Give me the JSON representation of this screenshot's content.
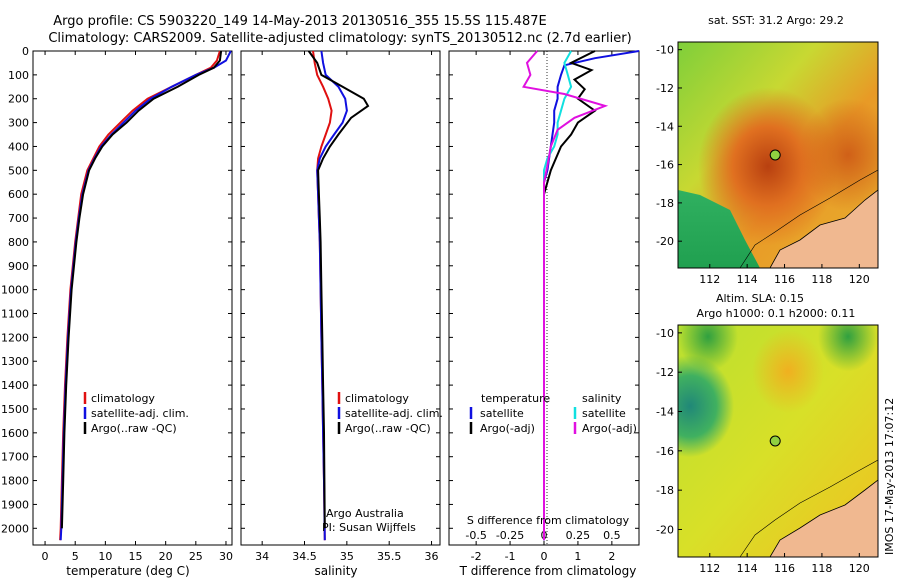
{
  "title_line1": "Argo profile: CS 5903220_149 14-May-2013 20130516_355 15.5S 115.487E",
  "title_line2": "Climatology: CARS2009. Satellite-adjusted climatology: synTS_20130512.nc (2.7d earlier)",
  "side_stamp": "IMOS 17-May-2013 17:07:12",
  "colors": {
    "climatology": "#e01010",
    "satellite_adj": "#1010e0",
    "argo": "#000000",
    "satellite_salinity": "#10e0e0",
    "argo_salinity": "#e010e0"
  },
  "chart_data": [
    {
      "type": "line",
      "id": "temperature",
      "xlabel": "temperature (deg C)",
      "ylabel": "",
      "xlim": [
        -2,
        31
      ],
      "ylim": [
        2070,
        0
      ],
      "xticks": [
        "0",
        "5",
        "10",
        "15",
        "20",
        "25",
        "30"
      ],
      "xtick_values": [
        0,
        5,
        10,
        15,
        20,
        25,
        30
      ],
      "yticks": [
        "0",
        "100",
        "200",
        "300",
        "400",
        "500",
        "600",
        "700",
        "800",
        "900",
        "1000",
        "1100",
        "1200",
        "1300",
        "1400",
        "1500",
        "1600",
        "1700",
        "1800",
        "1900",
        "2000"
      ],
      "ytick_values": [
        0,
        100,
        200,
        300,
        400,
        500,
        600,
        700,
        800,
        900,
        1000,
        1100,
        1200,
        1300,
        1400,
        1500,
        1600,
        1700,
        1800,
        1900,
        2000
      ],
      "legend": [
        "climatology",
        "satellite-adj. clim.",
        "Argo(..raw -QC)"
      ],
      "series": [
        {
          "name": "climatology",
          "color_key": "climatology",
          "x": [
            29,
            28.5,
            27.5,
            25,
            21,
            17,
            14.5,
            12.5,
            10.5,
            9,
            8,
            7,
            6,
            5.5,
            5,
            4.2,
            3.7,
            3.3,
            3,
            2.8,
            2.6,
            2.5
          ],
          "y": [
            0,
            40,
            70,
            100,
            150,
            200,
            250,
            300,
            350,
            400,
            450,
            500,
            600,
            700,
            800,
            1000,
            1200,
            1400,
            1600,
            1800,
            2000,
            2050
          ]
        },
        {
          "name": "satellite-adj. clim.",
          "color_key": "satellite_adj",
          "x": [
            30.8,
            30,
            28,
            25,
            21,
            17.5,
            15,
            13,
            11,
            9.3,
            8.2,
            7.2,
            6.2,
            5.6,
            5.1,
            4.3,
            3.8,
            3.4,
            3.1,
            2.9,
            2.7,
            2.6
          ],
          "y": [
            0,
            40,
            70,
            100,
            150,
            200,
            250,
            300,
            350,
            400,
            450,
            500,
            600,
            700,
            800,
            1000,
            1200,
            1400,
            1600,
            1800,
            2000,
            2050
          ]
        },
        {
          "name": "Argo(..raw -QC)",
          "color_key": "argo",
          "x": [
            29.2,
            29,
            28,
            25.5,
            22,
            18,
            15.5,
            13.5,
            11.2,
            9.5,
            8.3,
            7.3,
            6.3,
            5.7,
            5.2,
            4.4,
            3.9,
            3.5,
            3.2,
            3.0,
            2.8
          ],
          "y": [
            0,
            40,
            70,
            100,
            150,
            200,
            250,
            300,
            350,
            400,
            450,
            500,
            600,
            700,
            800,
            1000,
            1200,
            1400,
            1600,
            1800,
            2000
          ]
        }
      ]
    },
    {
      "type": "line",
      "id": "salinity",
      "xlabel": "salinity",
      "xlim": [
        33.75,
        36.1
      ],
      "ylim": [
        2070,
        0
      ],
      "xticks": [
        "34",
        "34.5",
        "35",
        "35.5",
        "36"
      ],
      "xtick_values": [
        34,
        34.5,
        35,
        35.5,
        36
      ],
      "legend": [
        "climatology",
        "satellite-adj. clim.",
        "Argo(..raw -QC)"
      ],
      "annotation_line1": "Argo Australia",
      "annotation_line2": "PI: Susan Wijffels",
      "series": [
        {
          "name": "climatology",
          "color_key": "climatology",
          "x": [
            34.6,
            34.62,
            34.65,
            34.72,
            34.78,
            34.82,
            34.8,
            34.75,
            34.7,
            34.66,
            34.65,
            34.66,
            34.67,
            34.68,
            34.69,
            34.7,
            34.71,
            34.72,
            34.73,
            34.74
          ],
          "y": [
            0,
            50,
            100,
            150,
            200,
            250,
            300,
            350,
            400,
            450,
            500,
            600,
            700,
            800,
            1000,
            1200,
            1400,
            1600,
            1800,
            2050
          ]
        },
        {
          "name": "satellite-adj. clim.",
          "color_key": "satellite_adj",
          "x": [
            34.7,
            34.72,
            34.75,
            34.9,
            34.98,
            35.0,
            34.95,
            34.85,
            34.75,
            34.68,
            34.65,
            34.66,
            34.67,
            34.68,
            34.69,
            34.7,
            34.71,
            34.72,
            34.73,
            34.74
          ],
          "y": [
            0,
            50,
            100,
            150,
            200,
            250,
            300,
            350,
            400,
            450,
            500,
            600,
            700,
            800,
            1000,
            1200,
            1400,
            1600,
            1800,
            2050
          ]
        },
        {
          "name": "Argo(..raw -QC)",
          "color_key": "argo",
          "x": [
            34.55,
            34.65,
            34.7,
            34.95,
            35.2,
            35.25,
            35.05,
            34.9,
            34.8,
            34.72,
            34.66,
            34.67,
            34.68,
            34.69,
            34.7,
            34.71,
            34.72,
            34.73,
            34.74
          ],
          "y": [
            0,
            50,
            100,
            150,
            200,
            230,
            280,
            350,
            400,
            450,
            500,
            600,
            700,
            800,
            1000,
            1200,
            1400,
            1600,
            2000
          ]
        }
      ]
    },
    {
      "type": "line",
      "id": "difference",
      "xlabel": "T difference from climatology",
      "xlabel_top": "S difference from climatology",
      "xlim": [
        -2.8,
        2.8
      ],
      "ylim": [
        2070,
        0
      ],
      "xticks": [
        "-2",
        "-1",
        "0",
        "1",
        "2"
      ],
      "xtick_values": [
        -2,
        -1,
        0,
        1,
        2
      ],
      "sticks": [
        "-0.5",
        "-0.25",
        "0",
        "0.25",
        "0.5"
      ],
      "stick_values": [
        -2,
        -1,
        0,
        1,
        2
      ],
      "legend_temperature_header": "temperature",
      "legend_salinity_header": "salinity",
      "legend": [
        "satellite",
        "Argo(-adj)",
        "satellite",
        "Argo(-adj)"
      ],
      "series": [
        {
          "name": "satellite",
          "color_key": "satellite_adj",
          "x": [
            2.8,
            1.5,
            0.6,
            0.5,
            0.4,
            0.4,
            0.3,
            0.3,
            0.2,
            0.1,
            0,
            0,
            0,
            0,
            0,
            0,
            0
          ],
          "y": [
            0,
            30,
            60,
            100,
            150,
            200,
            250,
            300,
            400,
            500,
            550,
            600,
            800,
            1000,
            1400,
            1800,
            2050
          ]
        },
        {
          "name": "Argo(-adj)",
          "color_key": "argo",
          "x": [
            1.5,
            0.8,
            1.4,
            0.9,
            1.2,
            1.0,
            1.5,
            1.0,
            0.8,
            0.5,
            0.2,
            0,
            0,
            0,
            0,
            0,
            0
          ],
          "y": [
            0,
            50,
            80,
            120,
            160,
            200,
            250,
            300,
            350,
            400,
            500,
            600,
            800,
            1000,
            1400,
            1800,
            2050
          ]
        },
        {
          "name": "satellite",
          "color_key": "satellite_salinity",
          "x": [
            0.8,
            0.6,
            0.7,
            0.8,
            0.6,
            0.5,
            0.4,
            0.4,
            0.3,
            0.1,
            0,
            0,
            0,
            0,
            0,
            0
          ],
          "y": [
            0,
            50,
            100,
            150,
            200,
            250,
            300,
            350,
            400,
            450,
            500,
            600,
            800,
            1200,
            1600,
            2050
          ]
        },
        {
          "name": "Argo(-adj)",
          "color_key": "argo_salinity",
          "x": [
            -0.2,
            -0.5,
            -0.4,
            -0.6,
            0.6,
            1.8,
            0.9,
            0.4,
            0.2,
            0.1,
            0,
            0,
            0,
            0,
            0
          ],
          "y": [
            0,
            50,
            100,
            150,
            180,
            230,
            280,
            330,
            400,
            480,
            550,
            700,
            1000,
            1500,
            2050
          ]
        }
      ]
    },
    {
      "type": "heatmap",
      "id": "sst_map",
      "title": "sat. SST: 31.2 Argo: 29.2",
      "xlim": [
        110.3,
        121.0
      ],
      "ylim": [
        -21.4,
        -9.6
      ],
      "xticks": [
        "112",
        "114",
        "116",
        "118",
        "120"
      ],
      "xtick_values": [
        112,
        114,
        116,
        118,
        120
      ],
      "yticks": [
        "-10",
        "-12",
        "-14",
        "-16",
        "-18",
        "-20"
      ],
      "ytick_values": [
        -10,
        -12,
        -14,
        -16,
        -18,
        -20
      ],
      "marker": {
        "lon": 115.5,
        "lat": -15.5
      }
    },
    {
      "type": "heatmap",
      "id": "sla_map",
      "title_line1": "Altim. SLA: 0.15",
      "title_line2": "Argo h1000: 0.1 h2000: 0.11",
      "xlim": [
        110.3,
        121.0
      ],
      "ylim": [
        -21.4,
        -9.6
      ],
      "xticks": [
        "112",
        "114",
        "116",
        "118",
        "120"
      ],
      "xtick_values": [
        112,
        114,
        116,
        118,
        120
      ],
      "yticks": [
        "-10",
        "-12",
        "-14",
        "-16",
        "-18",
        "-20"
      ],
      "ytick_values": [
        -10,
        -12,
        -14,
        -16,
        -18,
        -20
      ],
      "marker": {
        "lon": 115.5,
        "lat": -15.5
      }
    }
  ]
}
